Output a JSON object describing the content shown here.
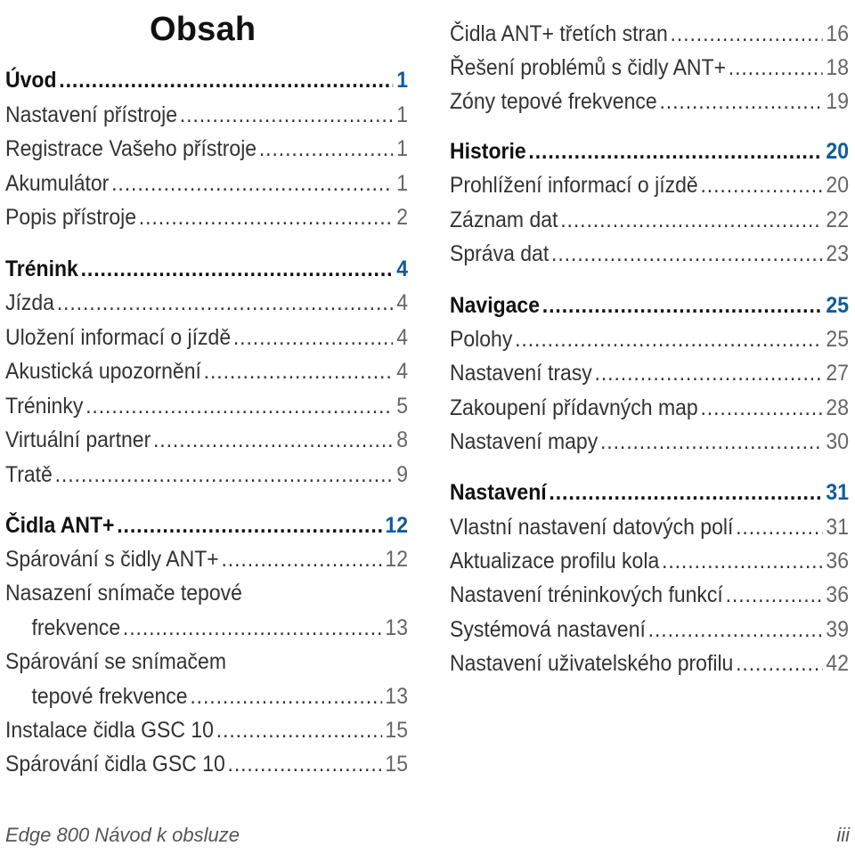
{
  "title": "Obsah",
  "left": {
    "s1": {
      "label": "Úvod",
      "page": "1"
    },
    "s1_items": [
      {
        "label": "Nastavení přístroje",
        "page": "1"
      },
      {
        "label": "Registrace Vašeho přístroje",
        "page": "1"
      },
      {
        "label": "Akumulátor",
        "page": "1"
      },
      {
        "label": "Popis přístroje",
        "page": "2"
      }
    ],
    "s2": {
      "label": "Trénink",
      "page": "4"
    },
    "s2_items": [
      {
        "label": "Jízda",
        "page": "4"
      },
      {
        "label": "Uložení informací o jízdě",
        "page": "4"
      },
      {
        "label": "Akustická upozornění",
        "page": "4"
      },
      {
        "label": "Tréninky",
        "page": "5"
      },
      {
        "label": "Virtuální partner",
        "page": "8"
      },
      {
        "label": "Tratě",
        "page": "9"
      }
    ],
    "s3": {
      "label": "Čidla ANT+",
      "page": "12"
    },
    "s3_items": [
      {
        "label": "Spárování s čidly ANT+",
        "page": "12"
      },
      {
        "label": "Nasazení snímače tepové",
        "cont": "frekvence",
        "page": "13"
      },
      {
        "label": "Spárování se snímačem",
        "cont": "tepové frekvence",
        "page": "13"
      },
      {
        "label": "Instalace čidla GSC 10",
        "page": "15"
      },
      {
        "label": "Spárování čidla GSC 10",
        "page": "15"
      }
    ]
  },
  "right": {
    "pre_items": [
      {
        "label": "Čidla ANT+ třetích stran",
        "page": "16"
      },
      {
        "label": "Řešení problémů s čidly ANT+",
        "page": "18"
      },
      {
        "label": "Zóny tepové frekvence",
        "page": "19"
      }
    ],
    "s4": {
      "label": "Historie",
      "page": "20"
    },
    "s4_items": [
      {
        "label": "Prohlížení informací o jízdě",
        "page": "20"
      },
      {
        "label": "Záznam dat",
        "page": "22"
      },
      {
        "label": "Správa dat",
        "page": "23"
      }
    ],
    "s5": {
      "label": "Navigace",
      "page": "25"
    },
    "s5_items": [
      {
        "label": "Polohy",
        "page": "25"
      },
      {
        "label": "Nastavení trasy",
        "page": "27"
      },
      {
        "label": "Zakoupení přídavných map",
        "page": "28"
      },
      {
        "label": "Nastavení mapy",
        "page": "30"
      }
    ],
    "s6": {
      "label": "Nastavení",
      "page": "31"
    },
    "s6_items": [
      {
        "label": "Vlastní nastavení datových polí",
        "page": "31"
      },
      {
        "label": "Aktualizace profilu kola",
        "page": "36"
      },
      {
        "label": "Nastavení tréninkových funkcí",
        "page": "36"
      },
      {
        "label": "Systémová nastavení",
        "page": "39"
      },
      {
        "label": "Nastavení uživatelského profilu",
        "page": "42"
      }
    ]
  },
  "footer": {
    "manual": "Edge 800 Návod k obsluze",
    "page_roman": "iii"
  }
}
